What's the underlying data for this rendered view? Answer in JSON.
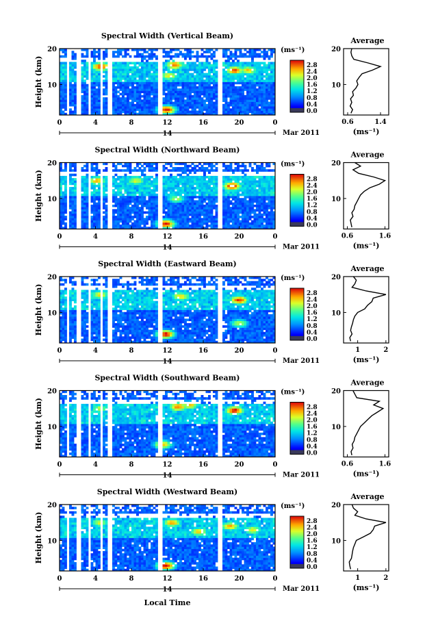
{
  "chart_data": [
    {
      "type": "heatmap",
      "title": "Spectral Width (Vertical Beam)",
      "xlabel": "",
      "ylabel": "Height (km)",
      "x_ticks": [
        "0",
        "4",
        "8",
        "12",
        "16",
        "20",
        "0"
      ],
      "x_range": [
        0,
        24
      ],
      "y_ticks": [
        "20",
        "10"
      ],
      "y_range": [
        1.5,
        20
      ],
      "date_row": {
        "day": "14",
        "month": "Mar 2011"
      },
      "colorbar": {
        "unit": "(ms⁻¹)",
        "ticks": [
          "2.8",
          "2.4",
          "2.0",
          "1.6",
          "1.2",
          "0.8",
          "0.4",
          "0.0"
        ],
        "range": [
          0,
          3.0
        ]
      },
      "gaps_hours": [
        [
          0.9,
          1.2
        ],
        [
          1.9,
          2.3
        ],
        [
          3.1,
          3.5
        ],
        [
          4.4,
          4.8
        ],
        [
          5.4,
          5.9
        ],
        [
          10.9,
          11.4
        ],
        [
          17.7,
          18.1
        ]
      ],
      "hotspots": [
        {
          "x": 4.6,
          "y": 15,
          "level": 2.8
        },
        {
          "x": 12.8,
          "y": 15.5,
          "level": 2.6
        },
        {
          "x": 11.9,
          "y": 3,
          "level": 2.9
        },
        {
          "x": 19.5,
          "y": 14,
          "level": 2.7
        },
        {
          "x": 12.2,
          "y": 12.5,
          "level": 2.2
        },
        {
          "x": 21,
          "y": 14,
          "level": 2.3
        }
      ],
      "profile": {
        "title": "Average",
        "xlabel": "(ms⁻¹)",
        "x_ticks": [
          "0.6",
          "1.4"
        ],
        "x_range": [
          0.5,
          1.6
        ],
        "y_ticks": [
          "20",
          "10"
        ],
        "heights": [
          2,
          3,
          4,
          5,
          6,
          7,
          8,
          9,
          10,
          11,
          12,
          13,
          14,
          15,
          16,
          17,
          18,
          19,
          20
        ],
        "values": [
          0.68,
          0.72,
          0.66,
          0.7,
          0.67,
          0.74,
          0.72,
          0.8,
          0.85,
          0.82,
          0.88,
          0.95,
          1.2,
          1.4,
          1.1,
          0.75,
          0.7,
          0.68,
          0.7
        ]
      }
    },
    {
      "type": "heatmap",
      "title": "Spectral Width (Northward Beam)",
      "xlabel": "",
      "ylabel": "Height (km)",
      "x_ticks": [
        "0",
        "4",
        "8",
        "12",
        "16",
        "20",
        "0"
      ],
      "x_range": [
        0,
        24
      ],
      "y_ticks": [
        "20",
        "10"
      ],
      "y_range": [
        1.5,
        20
      ],
      "date_row": {
        "day": "14",
        "month": "Mar 2011"
      },
      "colorbar": {
        "unit": "(ms⁻¹)",
        "ticks": [
          "2.8",
          "2.4",
          "2.0",
          "1.6",
          "1.2",
          "0.8",
          "0.4",
          "0.0"
        ],
        "range": [
          0,
          3.0
        ]
      },
      "gaps_hours": [
        [
          0.9,
          1.2
        ],
        [
          1.9,
          2.3
        ],
        [
          3.1,
          3.5
        ],
        [
          4.4,
          4.8
        ],
        [
          5.4,
          5.9
        ],
        [
          10.9,
          11.4
        ],
        [
          17.7,
          18.1
        ]
      ],
      "hotspots": [
        {
          "x": 19.2,
          "y": 13.5,
          "level": 2.9
        },
        {
          "x": 11.8,
          "y": 3,
          "level": 2.9
        },
        {
          "x": 4.2,
          "y": 15,
          "level": 2.4
        },
        {
          "x": 8.5,
          "y": 15,
          "level": 2.1
        },
        {
          "x": 13,
          "y": 10,
          "level": 1.9
        }
      ],
      "profile": {
        "title": "Average",
        "xlabel": "(ms⁻¹)",
        "x_ticks": [
          "0.6",
          "1.6"
        ],
        "x_range": [
          0.5,
          1.7
        ],
        "y_ticks": [
          "20",
          "10"
        ],
        "heights": [
          2,
          3,
          4,
          5,
          6,
          7,
          8,
          9,
          10,
          11,
          12,
          13,
          14,
          15,
          16,
          17,
          18,
          19,
          20
        ],
        "values": [
          0.72,
          0.7,
          0.68,
          0.75,
          0.72,
          0.78,
          0.8,
          0.85,
          0.9,
          0.95,
          1.05,
          1.2,
          1.45,
          1.6,
          1.3,
          0.9,
          0.75,
          0.95,
          0.8
        ]
      }
    },
    {
      "type": "heatmap",
      "title": "Spectral Width (Eastward Beam)",
      "xlabel": "",
      "ylabel": "Height (km)",
      "x_ticks": [
        "0",
        "4",
        "8",
        "12",
        "16",
        "20",
        "0"
      ],
      "x_range": [
        0,
        24
      ],
      "y_ticks": [
        "20",
        "10"
      ],
      "y_range": [
        1.5,
        20
      ],
      "date_row": {
        "day": "14",
        "month": "Mar 2011"
      },
      "colorbar": {
        "unit": "(ms⁻¹)",
        "ticks": [
          "2.8",
          "2.4",
          "2.0",
          "1.6",
          "1.2",
          "0.8",
          "0.4",
          "0.0"
        ],
        "range": [
          0,
          3.0
        ]
      },
      "gaps_hours": [
        [
          0.9,
          1.2
        ],
        [
          1.9,
          2.3
        ],
        [
          3.1,
          3.5
        ],
        [
          4.4,
          4.8
        ],
        [
          5.4,
          5.9
        ],
        [
          10.9,
          11.4
        ],
        [
          17.7,
          18.1
        ]
      ],
      "hotspots": [
        {
          "x": 20,
          "y": 13.5,
          "level": 2.8
        },
        {
          "x": 11.8,
          "y": 4,
          "level": 2.9
        },
        {
          "x": 13.5,
          "y": 14.5,
          "level": 2.3
        },
        {
          "x": 4.5,
          "y": 15,
          "level": 2.2
        },
        {
          "x": 20,
          "y": 7,
          "level": 2.0
        }
      ],
      "profile": {
        "title": "Average",
        "xlabel": "(ms⁻¹)",
        "x_ticks": [
          "1",
          "2"
        ],
        "x_range": [
          0.5,
          2.1
        ],
        "y_ticks": [
          "20",
          "10"
        ],
        "heights": [
          2,
          3,
          4,
          5,
          6,
          7,
          8,
          9,
          10,
          11,
          12,
          13,
          14,
          15,
          16,
          17,
          18,
          19,
          20
        ],
        "values": [
          0.75,
          0.72,
          0.8,
          0.75,
          0.78,
          0.82,
          0.85,
          0.9,
          1.0,
          1.25,
          1.35,
          1.5,
          1.55,
          2.0,
          1.3,
          0.8,
          0.9,
          0.95,
          0.85
        ]
      }
    },
    {
      "type": "heatmap",
      "title": "Spectral Width (Southward Beam)",
      "xlabel": "",
      "ylabel": "Height (km)",
      "x_ticks": [
        "0",
        "4",
        "8",
        "12",
        "16",
        "20",
        "0"
      ],
      "x_range": [
        0,
        24
      ],
      "y_ticks": [
        "20",
        "10"
      ],
      "y_range": [
        1.5,
        20
      ],
      "date_row": {
        "day": "14",
        "month": "Mar 2011"
      },
      "colorbar": {
        "unit": "(ms⁻¹)",
        "ticks": [
          "2.8",
          "2.4",
          "2.0",
          "1.6",
          "1.2",
          "0.8",
          "0.4",
          "0.0"
        ],
        "range": [
          0,
          3.0
        ]
      },
      "gaps_hours": [
        [
          0.9,
          1.2
        ],
        [
          1.9,
          2.3
        ],
        [
          3.1,
          3.5
        ],
        [
          4.4,
          4.8
        ],
        [
          5.4,
          5.9
        ],
        [
          10.9,
          11.4
        ],
        [
          17.7,
          18.1
        ]
      ],
      "hotspots": [
        {
          "x": 19.5,
          "y": 14.5,
          "level": 2.9
        },
        {
          "x": 13.2,
          "y": 15.5,
          "level": 2.6
        },
        {
          "x": 11.5,
          "y": 5,
          "level": 2.4
        },
        {
          "x": 14.5,
          "y": 16,
          "level": 2.3
        },
        {
          "x": 4.5,
          "y": 15,
          "level": 2.0
        }
      ],
      "profile": {
        "title": "Average",
        "xlabel": "(ms⁻¹)",
        "x_ticks": [
          "0.6",
          "1.6"
        ],
        "x_range": [
          0.5,
          1.7
        ],
        "y_ticks": [
          "20",
          "10"
        ],
        "heights": [
          2,
          3,
          4,
          5,
          6,
          7,
          8,
          9,
          10,
          11,
          12,
          13,
          14,
          15,
          16,
          17,
          18,
          19,
          20
        ],
        "values": [
          0.72,
          0.7,
          0.75,
          0.73,
          0.78,
          0.8,
          0.85,
          0.9,
          0.95,
          1.05,
          1.15,
          1.25,
          1.4,
          1.55,
          1.3,
          1.45,
          0.85,
          0.8,
          0.75
        ]
      }
    },
    {
      "type": "heatmap",
      "title": "Spectral Width (Westward Beam)",
      "xlabel": "Local Time",
      "ylabel": "Height (km)",
      "x_ticks": [
        "0",
        "4",
        "8",
        "12",
        "16",
        "20",
        "0"
      ],
      "x_range": [
        0,
        24
      ],
      "y_ticks": [
        "20",
        "10"
      ],
      "y_range": [
        1.5,
        20
      ],
      "date_row": {
        "day": "14",
        "month": "Mar 2011"
      },
      "colorbar": {
        "unit": "(ms⁻¹)",
        "ticks": [
          "2.8",
          "2.4",
          "2.0",
          "1.6",
          "1.2",
          "0.8",
          "0.4",
          "0.0"
        ],
        "range": [
          0,
          3.0
        ]
      },
      "gaps_hours": [
        [
          0.9,
          1.2
        ],
        [
          1.9,
          2.3
        ],
        [
          3.1,
          3.5
        ],
        [
          4.4,
          4.8
        ],
        [
          5.4,
          5.9
        ],
        [
          10.9,
          11.4
        ],
        [
          17.7,
          18.1
        ]
      ],
      "hotspots": [
        {
          "x": 11.8,
          "y": 3,
          "level": 2.9
        },
        {
          "x": 12.5,
          "y": 15,
          "level": 2.5
        },
        {
          "x": 19,
          "y": 14,
          "level": 2.4
        },
        {
          "x": 15.5,
          "y": 12.5,
          "level": 2.3
        },
        {
          "x": 21.5,
          "y": 13,
          "level": 2.2
        },
        {
          "x": 4.5,
          "y": 15,
          "level": 2.1
        }
      ],
      "profile": {
        "title": "Average",
        "xlabel": "(ms⁻¹)",
        "x_ticks": [
          "1",
          "2"
        ],
        "x_range": [
          0.5,
          2.1
        ],
        "y_ticks": [
          "20",
          "10"
        ],
        "heights": [
          2,
          3,
          4,
          5,
          6,
          7,
          8,
          9,
          10,
          11,
          12,
          13,
          14,
          15,
          16,
          17,
          18,
          19,
          20
        ],
        "values": [
          0.75,
          0.72,
          0.7,
          0.78,
          0.8,
          0.82,
          0.85,
          0.9,
          0.95,
          1.2,
          1.45,
          1.55,
          1.6,
          2.0,
          1.3,
          0.9,
          1.0,
          0.85,
          0.8
        ]
      }
    }
  ]
}
